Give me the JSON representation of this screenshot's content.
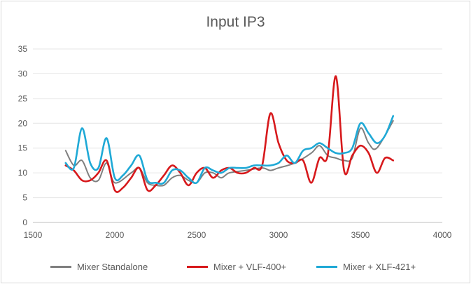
{
  "chart_data": {
    "type": "line",
    "title": "Input IP3",
    "xlabel": "",
    "ylabel": "",
    "xlim": [
      1500,
      4000
    ],
    "ylim": [
      0,
      35
    ],
    "xticks": [
      1500,
      2000,
      2500,
      3000,
      3500,
      4000
    ],
    "yticks": [
      0,
      5,
      10,
      15,
      20,
      25,
      30,
      35
    ],
    "grid": "horizontal",
    "legend_position": "bottom",
    "series": [
      {
        "name": "Mixer Standalone",
        "color": "#7f7f7f",
        "x": [
          1700,
          1750,
          1800,
          1850,
          1900,
          1950,
          2000,
          2100,
          2150,
          2200,
          2250,
          2300,
          2350,
          2400,
          2450,
          2500,
          2550,
          2600,
          2650,
          2700,
          2800,
          2900,
          2950,
          3000,
          3100,
          3200,
          3250,
          3300,
          3350,
          3400,
          3450,
          3500,
          3550,
          3600,
          3700
        ],
        "y": [
          14.5,
          11.5,
          12.5,
          9,
          8.5,
          12,
          8,
          10,
          11,
          8,
          7.5,
          7.5,
          9,
          9.5,
          8.5,
          8,
          10,
          10,
          9,
          10,
          10.5,
          11,
          10.5,
          11,
          12,
          14,
          15.5,
          13.5,
          13,
          12.5,
          13,
          19,
          16,
          15,
          20.5
        ]
      },
      {
        "name": "Mixer + VLF-400+",
        "color": "#d7191c",
        "x": [
          1700,
          1750,
          1800,
          1850,
          1900,
          1950,
          2000,
          2050,
          2100,
          2150,
          2200,
          2250,
          2300,
          2350,
          2400,
          2450,
          2500,
          2550,
          2600,
          2650,
          2700,
          2750,
          2800,
          2850,
          2900,
          2950,
          3000,
          3050,
          3100,
          3150,
          3200,
          3250,
          3300,
          3350,
          3400,
          3450,
          3500,
          3550,
          3600,
          3650,
          3700
        ],
        "y": [
          11.5,
          10.5,
          8.5,
          8.5,
          10,
          12.5,
          6.5,
          7,
          9,
          11,
          6.5,
          7.5,
          9.5,
          11.5,
          10,
          7.5,
          10,
          11,
          9,
          10.5,
          11,
          10,
          10,
          11,
          11.5,
          22,
          16,
          12.5,
          12,
          12.5,
          8,
          13,
          13.5,
          29.5,
          10.5,
          13.5,
          15.5,
          14,
          10,
          13,
          12.5
        ]
      },
      {
        "name": "Mixer + XLF-421+",
        "color": "#1fa9d6",
        "x": [
          1700,
          1750,
          1800,
          1850,
          1900,
          1950,
          2000,
          2050,
          2100,
          2150,
          2200,
          2250,
          2300,
          2350,
          2400,
          2450,
          2500,
          2550,
          2600,
          2650,
          2700,
          2750,
          2800,
          2850,
          2900,
          2950,
          3000,
          3050,
          3100,
          3150,
          3200,
          3250,
          3300,
          3350,
          3400,
          3450,
          3500,
          3550,
          3600,
          3650,
          3700
        ],
        "y": [
          12,
          11,
          19,
          12,
          11,
          17,
          9,
          9.5,
          11.5,
          13.5,
          8.5,
          8,
          8,
          10.5,
          10.5,
          9,
          8,
          11,
          10.5,
          10,
          11,
          11,
          11,
          11.5,
          11.5,
          11.5,
          12,
          13.5,
          12,
          14.5,
          15,
          16,
          15,
          14,
          14,
          15,
          20,
          18,
          16,
          17.5,
          21.5
        ]
      }
    ]
  }
}
